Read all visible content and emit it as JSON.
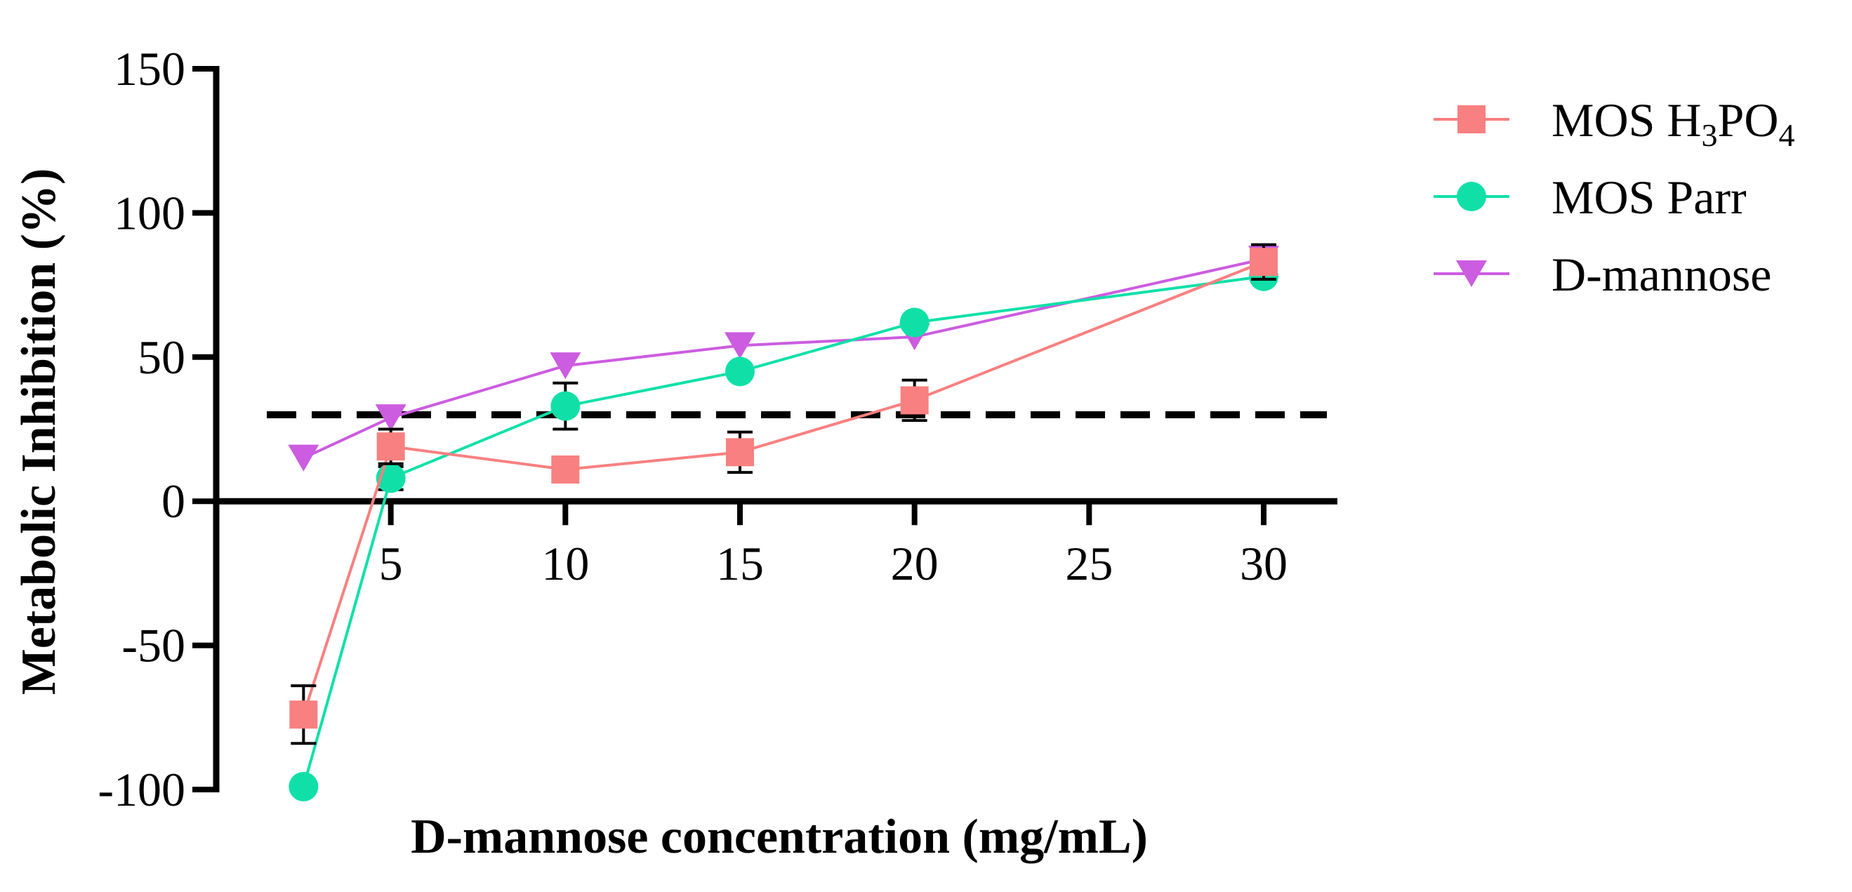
{
  "chart_data": {
    "type": "line",
    "xlabel": "D-mannose concentration (mg/mL)",
    "ylabel": "Metabolic Inhibition (%)",
    "ylim": [
      -100,
      150
    ],
    "xlim": [
      0,
      32
    ],
    "x_ticks": [
      5,
      10,
      15,
      20,
      25,
      30
    ],
    "y_ticks": [
      -100,
      -50,
      0,
      50,
      100,
      150
    ],
    "reference_line": {
      "y": 30,
      "style": "dashed",
      "color": "#000000"
    },
    "legend_position": "top-right",
    "series": [
      {
        "name": "MOS H",
        "name_sub": "3",
        "name_mid": "PO",
        "name_sub2": "4",
        "marker": "square",
        "color": "#F88080",
        "x": [
          2.5,
          5,
          10,
          15,
          20,
          30
        ],
        "y": [
          -74,
          19,
          11,
          17,
          35,
          83
        ],
        "err": [
          10,
          6,
          2,
          7,
          7,
          6
        ]
      },
      {
        "name": "MOS Parr",
        "marker": "circle",
        "color": "#10E0A8",
        "x": [
          2.5,
          5,
          10,
          15,
          20,
          30
        ],
        "y": [
          -99,
          8,
          33,
          45,
          62,
          78
        ],
        "err": [
          0,
          4,
          8,
          0,
          0,
          0
        ]
      },
      {
        "name": "D-mannose",
        "marker": "triangle-down",
        "color": "#CC5CE0",
        "x": [
          2.5,
          5,
          10,
          15,
          20,
          30
        ],
        "y": [
          15,
          29,
          47,
          54,
          57,
          84
        ],
        "err": [
          0,
          0,
          0,
          0,
          0,
          0
        ]
      }
    ]
  }
}
